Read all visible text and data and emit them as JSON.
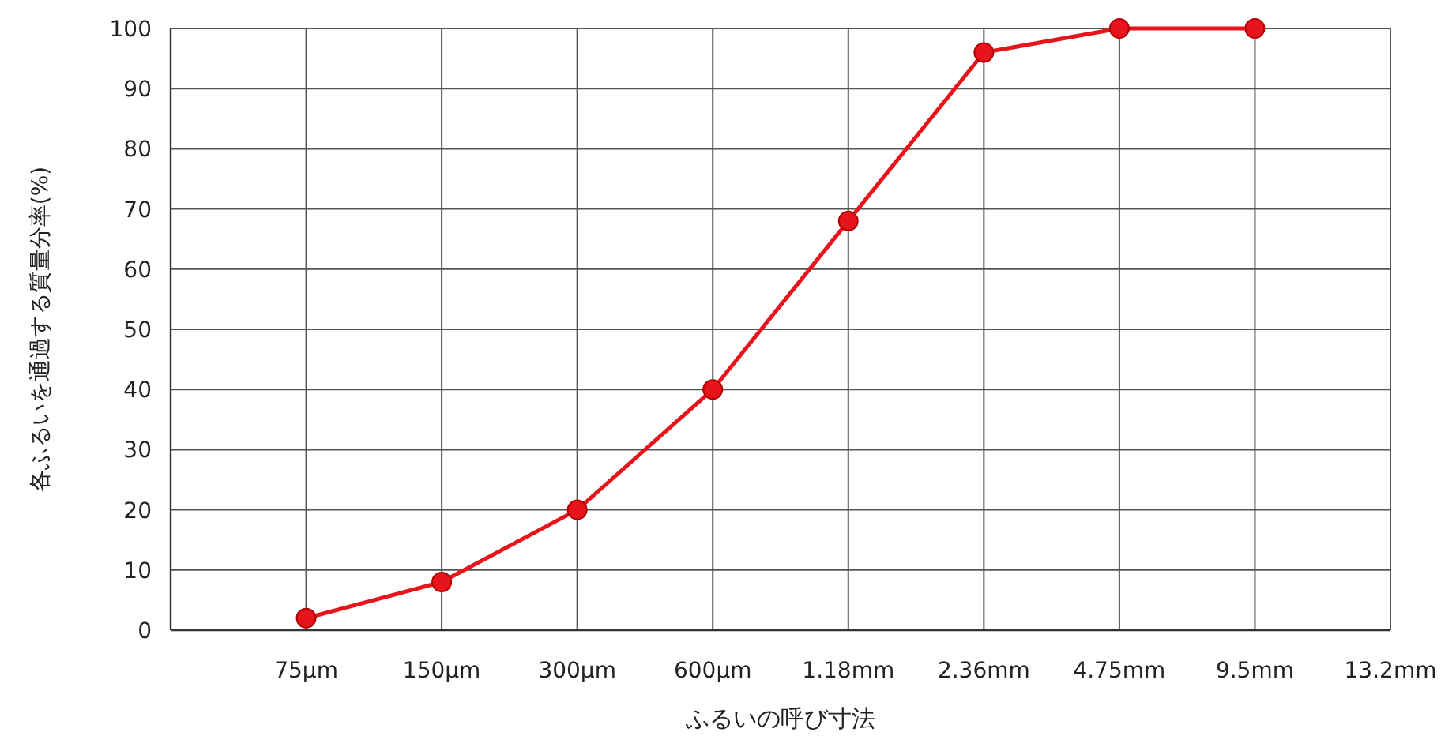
{
  "chart_data": {
    "type": "line",
    "xlabel": "ふるいの呼び寸法",
    "ylabel": "各ふるいを通過する質量分率(%)",
    "categories": [
      "75μm",
      "150μm",
      "300μm",
      "600μm",
      "1.18mm",
      "2.36mm",
      "4.75mm",
      "9.5mm",
      "13.2mm"
    ],
    "values": [
      2,
      8,
      20,
      40,
      68,
      96,
      100,
      100,
      null
    ],
    "color": "#e8141b",
    "marker": "circle",
    "line_style": "solid",
    "ylim": [
      0,
      100
    ],
    "yticks": [
      0,
      10,
      20,
      30,
      40,
      50,
      60,
      70,
      80,
      90,
      100
    ],
    "grid": true
  }
}
